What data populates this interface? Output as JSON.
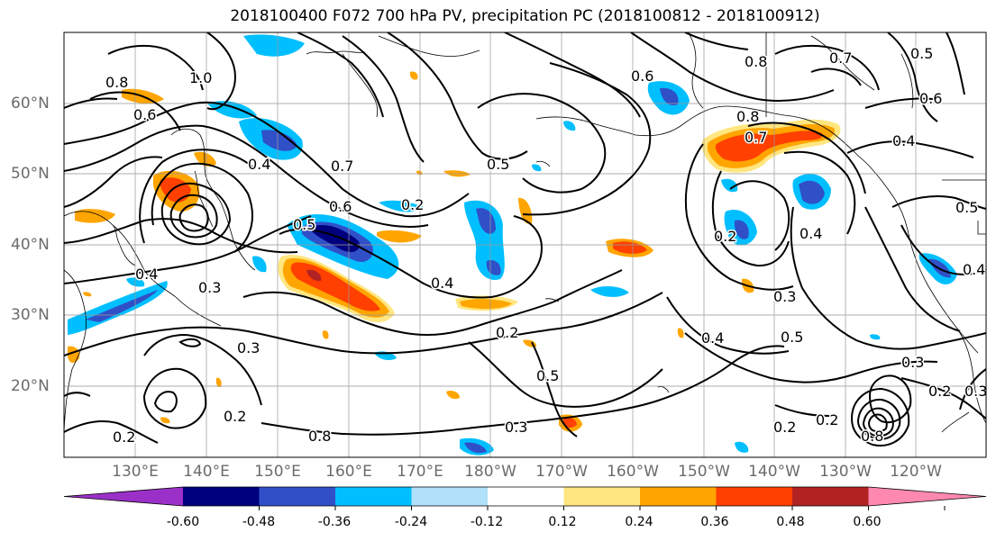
{
  "title": "2018100400 F072 700 hPa PV, precipitation PC (2018100812 - 2018100912)",
  "lat_labels": [
    "60°N",
    "50°N",
    "40°N",
    "30°N",
    "20°N"
  ],
  "lon_labels": [
    "130°E",
    "140°E",
    "150°E",
    "160°E",
    "170°E",
    "180°W",
    "170°W",
    "160°W",
    "150°W",
    "140°W",
    "130°W",
    "120°W"
  ],
  "contour_labels": [
    "0.8",
    "0.6",
    "1.0",
    "0.4",
    "0.7",
    "0.6",
    "0.5",
    "0.3",
    "0.4",
    "0.3",
    "0.2",
    "0.2",
    "0.4",
    "0.5",
    "0.2",
    "0.5",
    "0.6",
    "0.8",
    "0.7",
    "0.8",
    "0.2",
    "0.4",
    "0.3",
    "0.4",
    "0.5",
    "0.3",
    "0.2",
    "0.2",
    "0.8",
    "0.4",
    "0.5",
    "0.4",
    "0.3",
    "0.2",
    "0.3",
    "0.2",
    "0.8",
    "0.5",
    "0.6",
    "0.7"
  ],
  "colorbar": {
    "ticks": [
      "-0.60",
      "-0.48",
      "-0.36",
      "-0.24",
      "-0.12",
      "0.12",
      "0.24",
      "0.36",
      "0.48",
      "0.60"
    ],
    "colors": [
      "#9b30c8",
      "#00007f",
      "#3050c8",
      "#00bfff",
      "#b0e0fa",
      "#ffffff",
      "#ffe680",
      "#ffa500",
      "#ff4000",
      "#b22222",
      "#ff88b0"
    ]
  },
  "colors": {
    "neg_strong": "#00007f",
    "neg_mid": "#3050c8",
    "neg_light": "#00bfff",
    "neg_pale": "#b0e0fa",
    "pos_pale": "#ffe680",
    "pos_light": "#ffa500",
    "pos_mid": "#ff4000",
    "pos_strong": "#b22222"
  }
}
